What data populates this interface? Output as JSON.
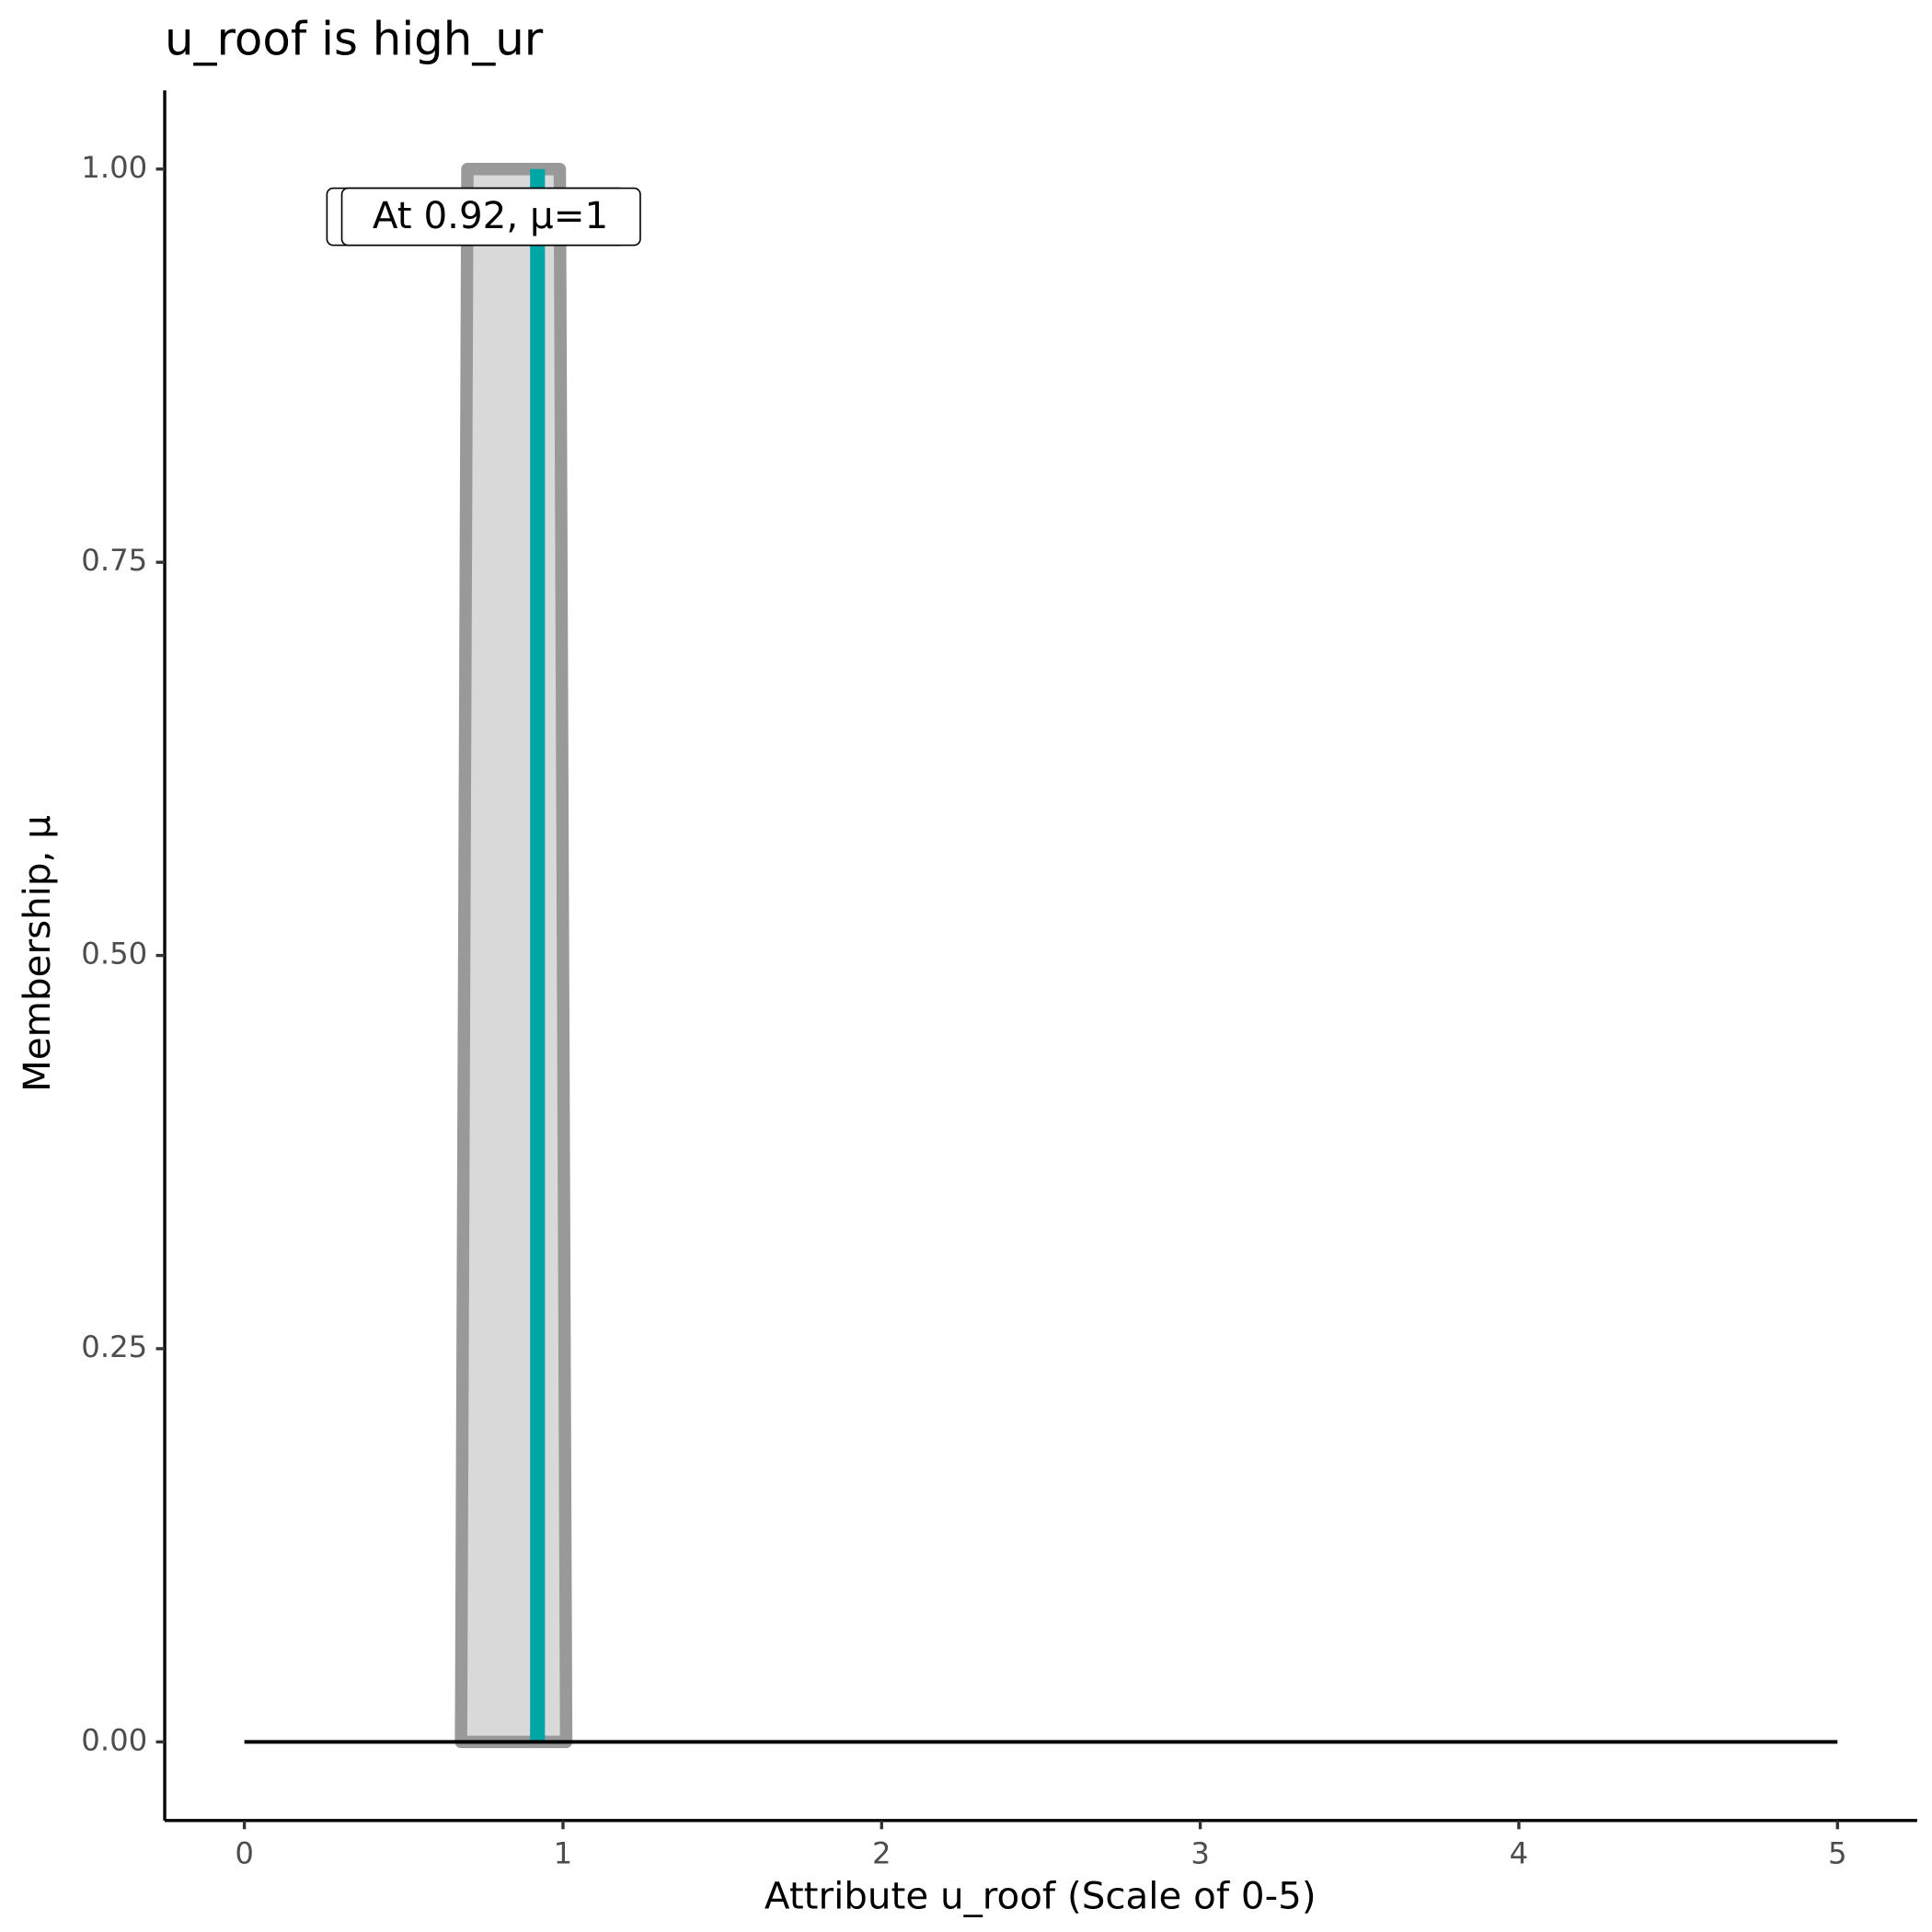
{
  "chart_data": {
    "type": "line",
    "title": "u_roof is high_ur",
    "x_label": "Attribute u_roof (Scale of 0-5)",
    "y_label": "Membership, μ",
    "xlim": [
      -0.25,
      5.25
    ],
    "xticks": [
      0,
      1,
      2,
      3,
      4,
      5
    ],
    "ylim": [
      -0.05,
      1.05
    ],
    "yticks": [
      {
        "value": 0,
        "label": "0.00"
      },
      {
        "value": 0.25,
        "label": "0.25"
      },
      {
        "value": 0.5,
        "label": "0.50"
      },
      {
        "value": 0.75,
        "label": "0.75"
      },
      {
        "value": 1,
        "label": "1.00"
      }
    ],
    "shape": {
      "x": [
        0.68,
        0.7,
        0.99,
        1.01
      ],
      "y": [
        0,
        1,
        1,
        0
      ],
      "color": "#999999",
      "fill": "#d9d9d9"
    },
    "baseline": {
      "x": [
        0,
        5
      ],
      "y": [
        0,
        0
      ],
      "color": "#000000"
    },
    "marker": {
      "x": 0.92,
      "y": 1,
      "color": "#00a5a5"
    },
    "annotation": "At 0.92, μ=1"
  }
}
